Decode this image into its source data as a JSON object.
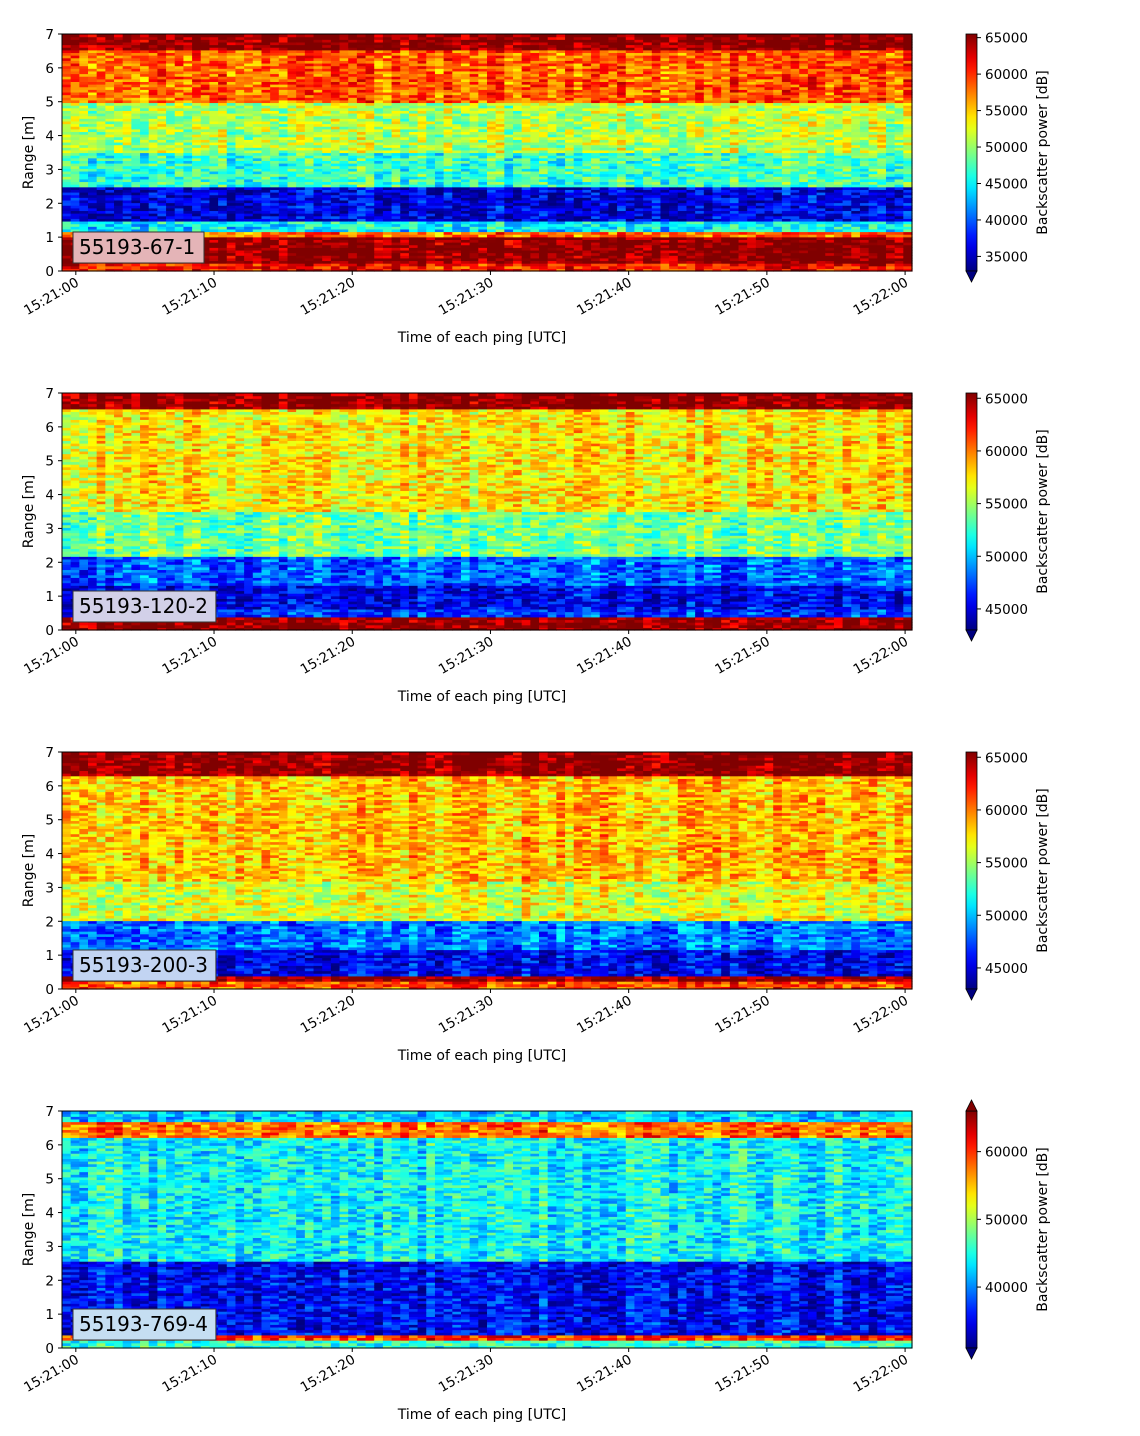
{
  "figure": {
    "xlabel": "Time of each ping [UTC]",
    "ylabel": "Range [m]",
    "colorbar_label": "Backscatter power [dB]",
    "colormap": "jet",
    "x_ticks": [
      "15:21:00",
      "15:21:10",
      "15:21:20",
      "15:21:30",
      "15:21:40",
      "15:21:50",
      "15:22:00"
    ],
    "y_ticks": [
      "0",
      "1",
      "2",
      "3",
      "4",
      "5",
      "6",
      "7"
    ]
  },
  "chart_data": [
    {
      "type": "heatmap",
      "label": "55193-67-1",
      "label_box_color": "#e4b4b7",
      "xlabel": "Time of each ping [UTC]",
      "ylabel": "Range [m]",
      "xlim": [
        "15:20:59",
        "15:22:00"
      ],
      "ylim": [
        0,
        7
      ],
      "colorbar": {
        "label": "Backscatter power [dB]",
        "min": 33000,
        "max": 65500,
        "ticks": [
          "35000",
          "40000",
          "45000",
          "50000",
          "55000",
          "60000",
          "65000"
        ],
        "extend": "min"
      },
      "range_profile": [
        {
          "range": [
            0.0,
            0.25
          ],
          "value": 61000
        },
        {
          "range": [
            0.25,
            1.0
          ],
          "value": 65500
        },
        {
          "range": [
            1.0,
            1.2
          ],
          "value": 58000
        },
        {
          "range": [
            1.2,
            1.5
          ],
          "value": 45000
        },
        {
          "range": [
            1.5,
            2.5
          ],
          "value": 36000
        },
        {
          "range": [
            2.5,
            3.5
          ],
          "value": 47000
        },
        {
          "range": [
            3.5,
            5.0
          ],
          "value": 51000
        },
        {
          "range": [
            5.0,
            6.5
          ],
          "value": 58500
        },
        {
          "range": [
            6.5,
            7.0
          ],
          "value": 65500
        }
      ]
    },
    {
      "type": "heatmap",
      "label": "55193-120-2",
      "label_box_color": "#d2d0e8",
      "xlabel": "Time of each ping [UTC]",
      "ylabel": "Range [m]",
      "xlim": [
        "15:20:59",
        "15:22:00"
      ],
      "ylim": [
        0,
        7
      ],
      "colorbar": {
        "label": "Backscatter power [dB]",
        "min": 43000,
        "max": 65500,
        "ticks": [
          "45000",
          "50000",
          "55000",
          "60000",
          "65000"
        ],
        "extend": "min"
      },
      "range_profile": [
        {
          "range": [
            0.0,
            0.4
          ],
          "value": 65500
        },
        {
          "range": [
            0.4,
            0.6
          ],
          "value": 47000
        },
        {
          "range": [
            0.6,
            1.3
          ],
          "value": 45500
        },
        {
          "range": [
            1.3,
            2.2
          ],
          "value": 48000
        },
        {
          "range": [
            2.2,
            3.5
          ],
          "value": 54000
        },
        {
          "range": [
            3.5,
            6.5
          ],
          "value": 57500
        },
        {
          "range": [
            6.5,
            7.0
          ],
          "value": 65500
        }
      ]
    },
    {
      "type": "heatmap",
      "label": "55193-200-3",
      "label_box_color": "#c2d4f2",
      "xlabel": "Time of each ping [UTC]",
      "ylabel": "Range [m]",
      "xlim": [
        "15:20:59",
        "15:22:00"
      ],
      "ylim": [
        0,
        7
      ],
      "colorbar": {
        "label": "Backscatter power [dB]",
        "min": 43000,
        "max": 65500,
        "ticks": [
          "45000",
          "50000",
          "55000",
          "60000",
          "65000"
        ],
        "extend": "min"
      },
      "range_profile": [
        {
          "range": [
            0.0,
            0.25
          ],
          "value": 61000
        },
        {
          "range": [
            0.25,
            0.4
          ],
          "value": 65500
        },
        {
          "range": [
            0.4,
            1.2
          ],
          "value": 45500
        },
        {
          "range": [
            1.2,
            2.0
          ],
          "value": 48500
        },
        {
          "range": [
            2.0,
            3.2
          ],
          "value": 56500
        },
        {
          "range": [
            3.2,
            6.3
          ],
          "value": 58500
        },
        {
          "range": [
            6.3,
            7.0
          ],
          "value": 65500
        }
      ]
    },
    {
      "type": "heatmap",
      "label": "55193-769-4",
      "label_box_color": "#c5def2",
      "xlabel": "Time of each ping [UTC]",
      "ylabel": "Range [m]",
      "xlim": [
        "15:20:59",
        "15:22:00"
      ],
      "ylim": [
        0,
        7
      ],
      "colorbar": {
        "label": "Backscatter power [dB]",
        "min": 31000,
        "max": 66000,
        "ticks": [
          "40000",
          "50000",
          "60000"
        ],
        "extend": "both"
      },
      "range_profile": [
        {
          "range": [
            0.0,
            0.2
          ],
          "value": 46000
        },
        {
          "range": [
            0.2,
            0.4
          ],
          "value": 60000
        },
        {
          "range": [
            0.4,
            2.6
          ],
          "value": 35500
        },
        {
          "range": [
            2.6,
            6.2
          ],
          "value": 44500
        },
        {
          "range": [
            6.2,
            6.7
          ],
          "value": 58000
        },
        {
          "range": [
            6.7,
            7.0
          ],
          "value": 43000
        }
      ]
    }
  ]
}
